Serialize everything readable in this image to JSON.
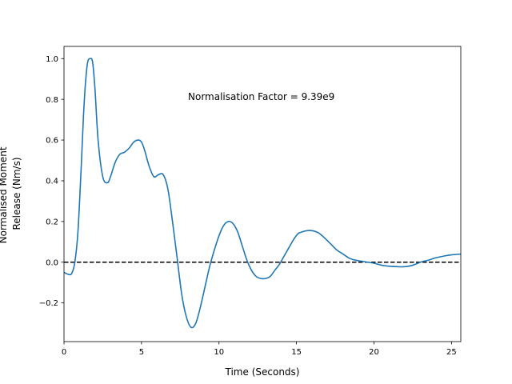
{
  "chart_data": {
    "type": "line",
    "xlabel": "Time (Seconds)",
    "ylabel_lines": [
      "Normalised Moment",
      "Release (Nm/s)"
    ],
    "annotation": "Normalisation Factor = 9.39e9",
    "xlim": [
      0,
      25.6
    ],
    "ylim": [
      -0.39,
      1.06
    ],
    "xticks": [
      0,
      5,
      10,
      15,
      20,
      25
    ],
    "yticks": [
      -0.2,
      0.0,
      0.2,
      0.4,
      0.6,
      0.8,
      1.0
    ],
    "ytick_labels": [
      "−0.2",
      "0.0",
      "0.2",
      "0.4",
      "0.6",
      "0.8",
      "1.0"
    ],
    "grid": false,
    "reference_line": {
      "y": 0.0,
      "style": "dashed",
      "color": "#000000"
    },
    "series": [
      {
        "color": "#1f77b4",
        "x": [
          0,
          0.3,
          0.5,
          0.7,
          0.9,
          1.1,
          1.3,
          1.5,
          1.7,
          1.85,
          2.0,
          2.2,
          2.5,
          2.8,
          3.0,
          3.3,
          3.6,
          3.9,
          4.2,
          4.5,
          4.8,
          5.0,
          5.2,
          5.5,
          5.8,
          6.1,
          6.4,
          6.7,
          7.0,
          7.3,
          7.6,
          7.9,
          8.2,
          8.5,
          8.8,
          9.1,
          9.4,
          9.7,
          10.0,
          10.3,
          10.6,
          10.9,
          11.2,
          11.5,
          11.8,
          12.1,
          12.4,
          12.7,
          13.0,
          13.3,
          13.6,
          13.9,
          14.2,
          14.5,
          14.8,
          15.1,
          15.4,
          15.7,
          16.0,
          16.4,
          16.8,
          17.2,
          17.6,
          18.0,
          18.4,
          18.8,
          19.2,
          19.6,
          20.0,
          20.5,
          21.0,
          21.5,
          22.0,
          22.5,
          23.0,
          23.5,
          24.0,
          24.5,
          25.0,
          25.6
        ],
        "y": [
          -0.05,
          -0.06,
          -0.055,
          0.0,
          0.15,
          0.45,
          0.78,
          0.97,
          1.0,
          0.98,
          0.85,
          0.6,
          0.42,
          0.39,
          0.42,
          0.49,
          0.53,
          0.54,
          0.56,
          0.59,
          0.6,
          0.59,
          0.55,
          0.47,
          0.42,
          0.43,
          0.43,
          0.36,
          0.2,
          0.02,
          -0.16,
          -0.27,
          -0.32,
          -0.3,
          -0.22,
          -0.12,
          -0.02,
          0.06,
          0.13,
          0.18,
          0.2,
          0.19,
          0.15,
          0.08,
          0.01,
          -0.04,
          -0.07,
          -0.08,
          -0.08,
          -0.07,
          -0.04,
          -0.01,
          0.03,
          0.07,
          0.11,
          0.14,
          0.15,
          0.155,
          0.155,
          0.145,
          0.12,
          0.09,
          0.06,
          0.04,
          0.02,
          0.01,
          0.005,
          0.0,
          -0.005,
          -0.015,
          -0.02,
          -0.022,
          -0.022,
          -0.015,
          0.0,
          0.01,
          0.022,
          0.03,
          0.036,
          0.04
        ]
      }
    ]
  }
}
